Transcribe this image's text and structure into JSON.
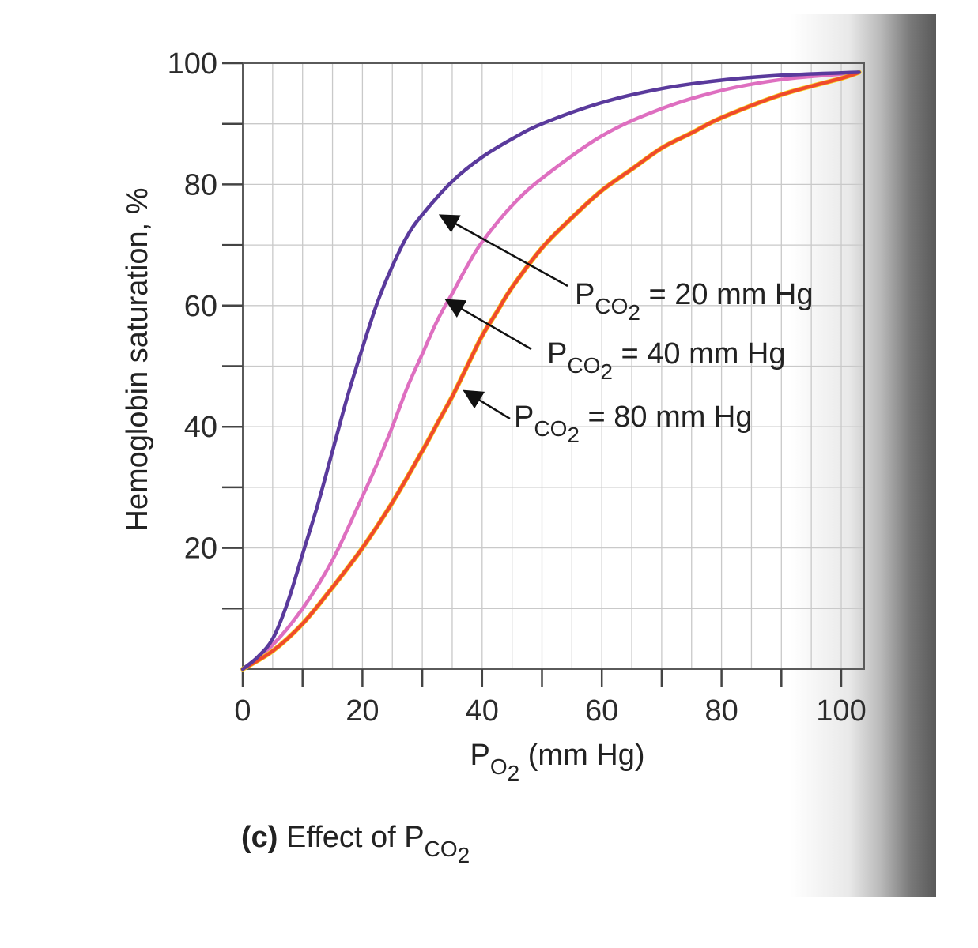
{
  "chart_data": {
    "type": "line",
    "title": "",
    "caption": {
      "bold": "(c)",
      "text": " Effect of P",
      "sub": "CO",
      "sub2": "2"
    },
    "xlabel": {
      "main": "P",
      "sub": "O",
      "sub2": "2",
      "rest": " (mm Hg)"
    },
    "ylabel": "Hemoglobin saturation, %",
    "xlim": [
      0,
      103
    ],
    "ylim": [
      0,
      100
    ],
    "x_ticks": [
      0,
      20,
      40,
      60,
      80,
      100
    ],
    "y_ticks": [
      20,
      40,
      60,
      80,
      100
    ],
    "x_minor": [
      10,
      30,
      50,
      70,
      90
    ],
    "y_minor": [
      10,
      30,
      50,
      70,
      90
    ],
    "x_grid": [
      0,
      5,
      10,
      15,
      20,
      25,
      30,
      35,
      40,
      45,
      50,
      55,
      60,
      65,
      70,
      75,
      80,
      85,
      90,
      95,
      100
    ],
    "y_grid": [
      10,
      20,
      30,
      40,
      50,
      60,
      70,
      80,
      90
    ],
    "grid": true,
    "series": [
      {
        "name": "PCO2 = 20 mm Hg",
        "color": "#5a3a9c",
        "x": [
          0,
          2.5,
          5,
          7.5,
          10,
          12.5,
          15,
          17.5,
          20,
          22.5,
          25,
          27.5,
          30,
          35,
          40,
          45,
          50,
          60,
          70,
          80,
          90,
          100,
          103
        ],
        "y": [
          0,
          2,
          5,
          11,
          19,
          27,
          36,
          45,
          53,
          60.5,
          66.5,
          71.5,
          75,
          80.5,
          84.5,
          87.5,
          90,
          93.5,
          95.8,
          97.2,
          98,
          98.4,
          98.5
        ]
      },
      {
        "name": "PCO2 = 40 mm Hg",
        "color": "#de6fc0",
        "x": [
          0,
          5,
          10,
          15,
          20,
          22.5,
          25,
          27.5,
          30,
          32.5,
          35,
          37.5,
          40,
          45,
          50,
          60,
          70,
          80,
          90,
          100,
          103
        ],
        "y": [
          0,
          4,
          10,
          18,
          28.5,
          34,
          40,
          46.5,
          52,
          57.5,
          62,
          66.5,
          70.5,
          76.5,
          81,
          88,
          92.5,
          95.5,
          97.3,
          98.2,
          98.5
        ]
      },
      {
        "name": "PCO2 = 80 mm Hg",
        "color": "#f04a2c",
        "x": [
          0,
          5,
          10,
          15,
          20,
          25,
          30,
          32.5,
          35,
          37.5,
          40,
          42.5,
          45,
          50,
          55,
          60,
          65,
          70,
          75,
          80,
          90,
          100,
          103
        ],
        "y": [
          0,
          3,
          7.5,
          13.5,
          20,
          27.5,
          36,
          40.5,
          45,
          50,
          55,
          59,
          63,
          69.5,
          74.5,
          79,
          82.5,
          86,
          88.5,
          91,
          94.8,
          97.5,
          98.5
        ]
      }
    ],
    "annotations": [
      {
        "label": "P",
        "sub": "CO",
        "sub2": "2",
        "text": " = 20 mm Hg",
        "target": [
          32,
          75
        ]
      },
      {
        "label": "P",
        "sub": "CO",
        "sub2": "2",
        "text": " = 40 mm Hg",
        "target": [
          33,
          61
        ]
      },
      {
        "label": "P",
        "sub": "CO",
        "sub2": "2",
        "text": " = 80 mm Hg",
        "target": [
          36,
          46
        ]
      }
    ]
  }
}
